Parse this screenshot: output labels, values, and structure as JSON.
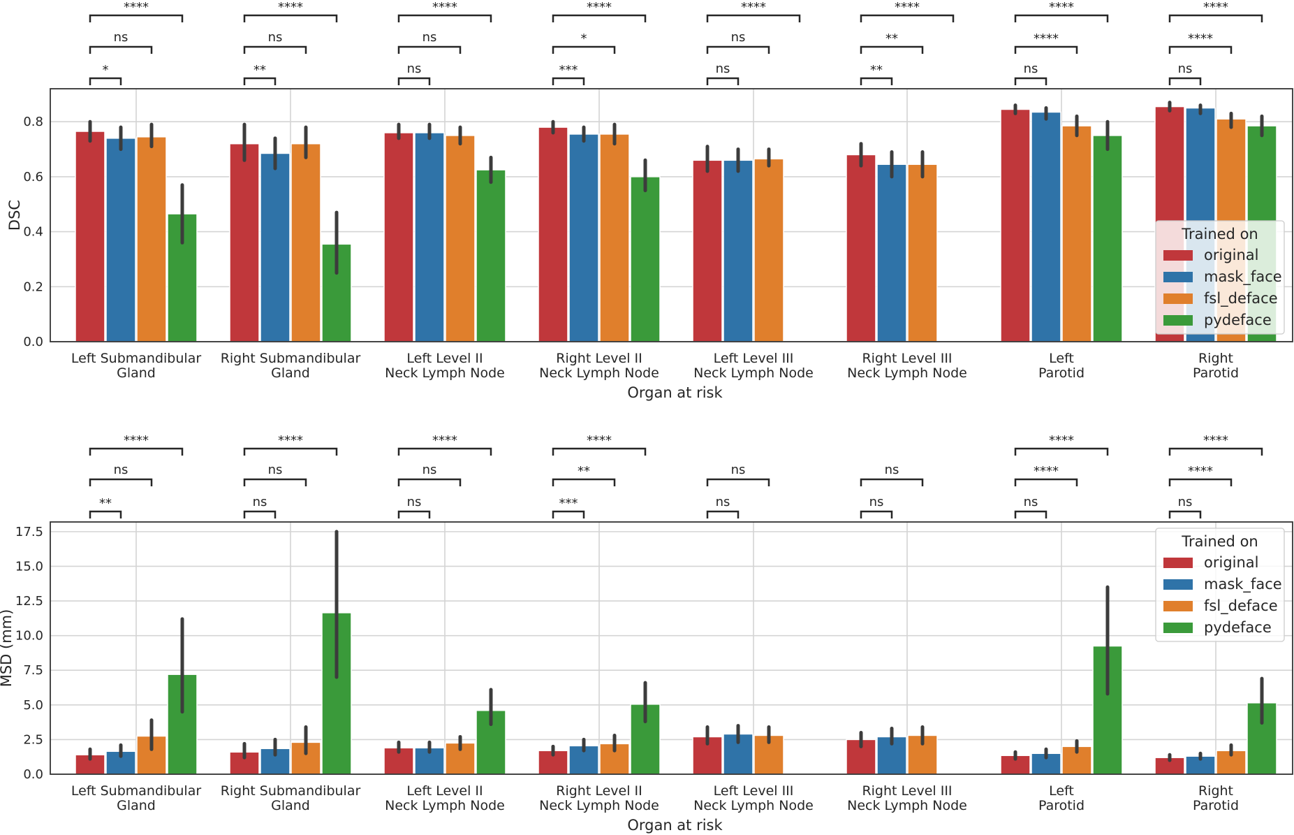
{
  "chart_data": [
    {
      "type": "bar",
      "ylabel": "DSC",
      "xlabel": "Organ at risk",
      "ylim": [
        0,
        0.92
      ],
      "yticks": [
        "0.0",
        "0.2",
        "0.4",
        "0.6",
        "0.8"
      ],
      "ytick_values": [
        0,
        0.2,
        0.4,
        0.6,
        0.8
      ],
      "grid": true,
      "legend_position": "lower-right",
      "legend_title": "Trained on",
      "categories": [
        [
          "Left Submandibular",
          "Gland"
        ],
        [
          "Right Submandibular",
          "Gland"
        ],
        [
          "Left Level II",
          "Neck Lymph Node"
        ],
        [
          "Right Level II",
          "Neck Lymph Node"
        ],
        [
          "Left Level III",
          "Neck Lymph Node"
        ],
        [
          "Right Level III",
          "Neck Lymph Node"
        ],
        [
          "Left",
          "Parotid"
        ],
        [
          "Right",
          "Parotid"
        ]
      ],
      "series": [
        {
          "name": "original",
          "color": "#c0373b",
          "values": [
            0.765,
            0.72,
            0.76,
            0.78,
            0.66,
            0.68,
            0.845,
            0.855
          ],
          "ci": [
            [
              0.73,
              0.8
            ],
            [
              0.66,
              0.79
            ],
            [
              0.74,
              0.79
            ],
            [
              0.76,
              0.8
            ],
            [
              0.62,
              0.71
            ],
            [
              0.64,
              0.72
            ],
            [
              0.83,
              0.86
            ],
            [
              0.84,
              0.87
            ]
          ]
        },
        {
          "name": "mask_face",
          "color": "#2f73a8",
          "values": [
            0.74,
            0.685,
            0.76,
            0.755,
            0.66,
            0.645,
            0.835,
            0.85
          ],
          "ci": [
            [
              0.7,
              0.78
            ],
            [
              0.63,
              0.74
            ],
            [
              0.74,
              0.79
            ],
            [
              0.73,
              0.78
            ],
            [
              0.62,
              0.7
            ],
            [
              0.6,
              0.69
            ],
            [
              0.81,
              0.85
            ],
            [
              0.83,
              0.86
            ]
          ]
        },
        {
          "name": "fsl_deface",
          "color": "#e07f2c",
          "values": [
            0.745,
            0.72,
            0.75,
            0.755,
            0.665,
            0.645,
            0.785,
            0.81
          ],
          "ci": [
            [
              0.71,
              0.79
            ],
            [
              0.67,
              0.78
            ],
            [
              0.72,
              0.78
            ],
            [
              0.72,
              0.79
            ],
            [
              0.64,
              0.7
            ],
            [
              0.6,
              0.69
            ],
            [
              0.75,
              0.82
            ],
            [
              0.78,
              0.83
            ]
          ]
        },
        {
          "name": "pydeface",
          "color": "#3a9a3a",
          "values": [
            0.465,
            0.355,
            0.625,
            0.6,
            null,
            null,
            0.75,
            0.785
          ],
          "ci": [
            [
              0.36,
              0.57
            ],
            [
              0.25,
              0.47
            ],
            [
              0.58,
              0.67
            ],
            [
              0.55,
              0.66
            ],
            null,
            null,
            [
              0.7,
              0.8
            ],
            [
              0.75,
              0.82
            ]
          ]
        }
      ],
      "significance": [
        [
          "*",
          "ns",
          "****"
        ],
        [
          "**",
          "ns",
          "****"
        ],
        [
          "ns",
          "ns",
          "****"
        ],
        [
          "***",
          "*",
          "****"
        ],
        [
          "ns",
          "ns",
          "****"
        ],
        [
          "**",
          "**",
          "****"
        ],
        [
          "ns",
          "****",
          "****"
        ],
        [
          "ns",
          "****",
          "****"
        ]
      ]
    },
    {
      "type": "bar",
      "ylabel": "MSD (mm)",
      "xlabel": "Organ at risk",
      "ylim": [
        0,
        18.2
      ],
      "yticks": [
        "0.0",
        "2.5",
        "5.0",
        "7.5",
        "10.0",
        "12.5",
        "15.0",
        "17.5"
      ],
      "ytick_values": [
        0,
        2.5,
        5,
        7.5,
        10,
        12.5,
        15,
        17.5
      ],
      "grid": true,
      "legend_position": "upper-right",
      "legend_title": "Trained on",
      "categories": [
        [
          "Left Submandibular",
          "Gland"
        ],
        [
          "Right Submandibular",
          "Gland"
        ],
        [
          "Left Level II",
          "Neck Lymph Node"
        ],
        [
          "Right Level II",
          "Neck Lymph Node"
        ],
        [
          "Left Level III",
          "Neck Lymph Node"
        ],
        [
          "Right Level III",
          "Neck Lymph Node"
        ],
        [
          "Left",
          "Parotid"
        ],
        [
          "Right",
          "Parotid"
        ]
      ],
      "series": [
        {
          "name": "original",
          "color": "#c0373b",
          "values": [
            1.4,
            1.6,
            1.9,
            1.7,
            2.7,
            2.5,
            1.35,
            1.2
          ],
          "ci": [
            [
              1.1,
              1.8
            ],
            [
              1.2,
              2.2
            ],
            [
              1.6,
              2.3
            ],
            [
              1.4,
              2.0
            ],
            [
              2.2,
              3.4
            ],
            [
              2.0,
              3.0
            ],
            [
              1.1,
              1.6
            ],
            [
              1.0,
              1.4
            ]
          ]
        },
        {
          "name": "mask_face",
          "color": "#2f73a8",
          "values": [
            1.65,
            1.85,
            1.9,
            2.05,
            2.9,
            2.7,
            1.5,
            1.3
          ],
          "ci": [
            [
              1.3,
              2.1
            ],
            [
              1.4,
              2.5
            ],
            [
              1.6,
              2.3
            ],
            [
              1.7,
              2.5
            ],
            [
              2.3,
              3.5
            ],
            [
              2.2,
              3.3
            ],
            [
              1.2,
              1.8
            ],
            [
              1.1,
              1.5
            ]
          ]
        },
        {
          "name": "fsl_deface",
          "color": "#e07f2c",
          "values": [
            2.75,
            2.3,
            2.25,
            2.2,
            2.8,
            2.8,
            2.0,
            1.7
          ],
          "ci": [
            [
              1.8,
              3.9
            ],
            [
              1.5,
              3.4
            ],
            [
              1.8,
              2.7
            ],
            [
              1.7,
              2.8
            ],
            [
              2.3,
              3.4
            ],
            [
              2.2,
              3.4
            ],
            [
              1.6,
              2.4
            ],
            [
              1.4,
              2.1
            ]
          ]
        },
        {
          "name": "pydeface",
          "color": "#3a9a3a",
          "values": [
            7.2,
            11.65,
            4.6,
            5.05,
            null,
            null,
            9.25,
            5.15
          ],
          "ci": [
            [
              4.5,
              11.2
            ],
            [
              7.0,
              17.5
            ],
            [
              3.6,
              6.1
            ],
            [
              3.8,
              6.6
            ],
            null,
            null,
            [
              5.8,
              13.5
            ],
            [
              3.7,
              6.9
            ]
          ]
        }
      ],
      "significance": [
        [
          "**",
          "ns",
          "****"
        ],
        [
          "ns",
          "ns",
          "****"
        ],
        [
          "ns",
          "ns",
          "****"
        ],
        [
          "***",
          "**",
          "****"
        ],
        [
          "ns",
          "ns",
          null
        ],
        [
          "ns",
          "ns",
          null
        ],
        [
          "ns",
          "****",
          "****"
        ],
        [
          "ns",
          "****",
          "****"
        ]
      ]
    }
  ]
}
